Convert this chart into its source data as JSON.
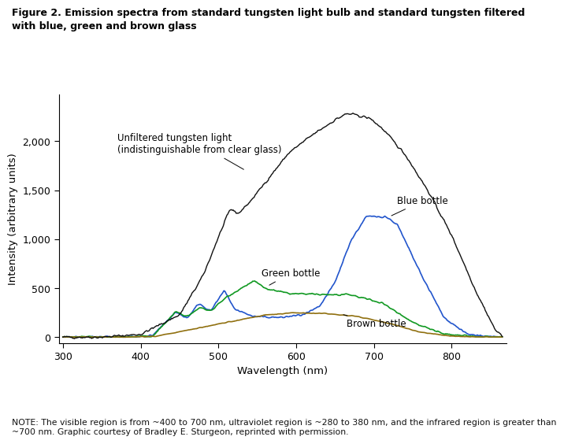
{
  "title": "Figure 2. Emission spectra from standard tungsten light bulb and standard tungsten filtered\nwith blue, green and brown glass",
  "xlabel": "Wavelength (nm)",
  "ylabel": "Intensity (arbitrary units)",
  "note": "NOTE: The visible region is from ~400 to 700 nm, ultraviolet region is ~280 to 380 nm, and the infrared region is greater than\n~700 nm. Graphic courtesy of Bradley E. Sturgeon, reprinted with permission.",
  "xlim": [
    295,
    870
  ],
  "ylim": [
    -60,
    2480
  ],
  "yticks": [
    0,
    500,
    1000,
    1500,
    2000
  ],
  "xticks": [
    300,
    400,
    500,
    600,
    700,
    800
  ],
  "colors": {
    "black": "#111111",
    "blue": "#2255cc",
    "green": "#119922",
    "brown": "#907010"
  }
}
